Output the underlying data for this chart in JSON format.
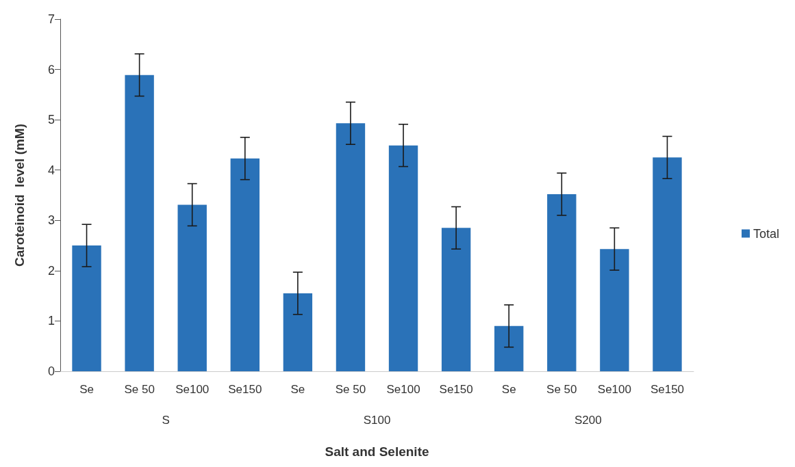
{
  "chart_data": {
    "type": "bar",
    "xlabel": "Salt and Selenite",
    "ylabel": "Caroteinoid  level (mM)",
    "categories": [
      "Se",
      "Se 50",
      "Se100",
      "Se150",
      "Se",
      "Se 50",
      "Se100",
      "Se150",
      "Se",
      "Se 50",
      "Se100",
      "Se150"
    ],
    "series": [
      {
        "name": "Total",
        "color": "#2a72b8",
        "values": [
          2.5,
          5.89,
          3.31,
          4.23,
          1.55,
          4.93,
          4.49,
          2.85,
          0.9,
          3.52,
          2.43,
          4.25
        ],
        "errors": [
          0.42,
          0.42,
          0.42,
          0.42,
          0.42,
          0.42,
          0.42,
          0.42,
          0.42,
          0.42,
          0.42,
          0.42
        ]
      }
    ],
    "annotations": [
      "S",
      "S100",
      "S200"
    ],
    "ylim": [
      0,
      7
    ],
    "yticks": [
      0,
      1,
      2,
      3,
      4,
      5,
      6,
      7
    ],
    "grid": false,
    "legend": "right"
  }
}
